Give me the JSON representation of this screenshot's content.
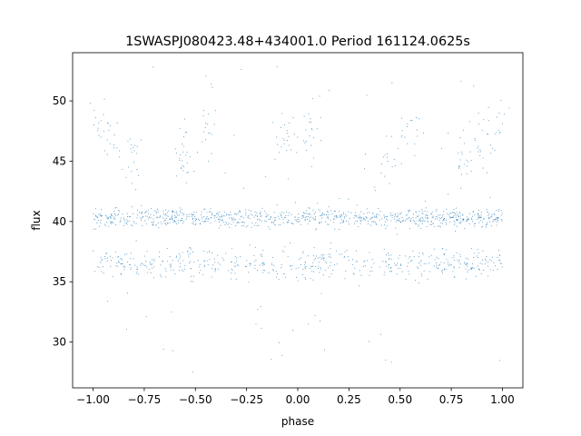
{
  "chart_data": {
    "type": "scatter",
    "title": "1SWASPJ080423.48+434001.0 Period 161124.0625s",
    "xlabel": "phase",
    "ylabel": "flux",
    "xlim": [
      -1.1,
      1.1
    ],
    "ylim": [
      26.2,
      54.0
    ],
    "xticks": [
      -1.0,
      -0.75,
      -0.5,
      -0.25,
      0.0,
      0.25,
      0.5,
      0.75,
      1.0
    ],
    "xtick_labels": [
      "−1.00",
      "−0.75",
      "−0.50",
      "−0.25",
      "0.00",
      "0.25",
      "0.50",
      "0.75",
      "1.00"
    ],
    "yticks": [
      30,
      35,
      40,
      45,
      50
    ],
    "ytick_labels": [
      "30",
      "35",
      "40",
      "45",
      "50"
    ],
    "grid": false,
    "point_color": "#1f77b4",
    "series": [
      {
        "x_range": [
          -1.0,
          1.0
        ],
        "mirrored_about_zero": true,
        "bands": [
          {
            "center": 40.3,
            "spread": 0.55
          },
          {
            "center": 36.5,
            "spread": 0.9
          }
        ],
        "upper_structures": [
          {
            "x": -0.98,
            "y": 48.0
          },
          {
            "x": -0.9,
            "y": 46.5
          },
          {
            "x": -0.8,
            "y": 45.5
          },
          {
            "x": -0.55,
            "y": 45.0
          },
          {
            "x": -0.45,
            "y": 47.5
          },
          {
            "x": -0.05,
            "y": 47.0
          },
          {
            "x": 0.05,
            "y": 47.5
          },
          {
            "x": 0.45,
            "y": 45.0
          },
          {
            "x": 0.55,
            "y": 47.5
          },
          {
            "x": 0.8,
            "y": 45.5
          },
          {
            "x": 0.9,
            "y": 46.5
          },
          {
            "x": 0.98,
            "y": 48.0
          }
        ],
        "flux_range": [
          27.5,
          53.0
        ]
      }
    ]
  }
}
